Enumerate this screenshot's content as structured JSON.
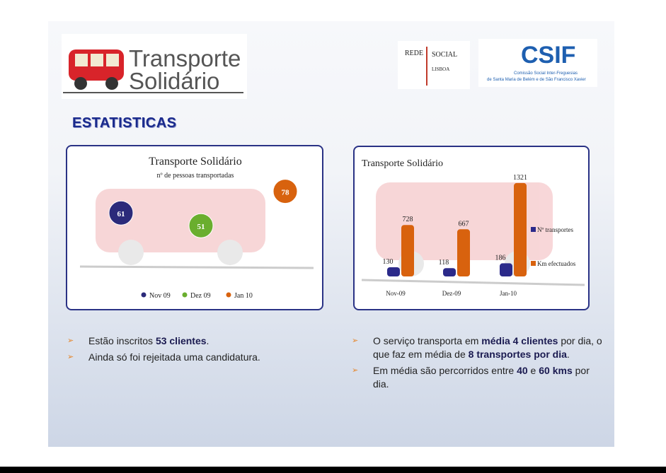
{
  "header": {
    "logo_line1": "Transporte",
    "logo_line2": "Solidário",
    "partner1_line1": "REDE",
    "partner1_line2": "SOCIAL",
    "partner1_line3": "LISBOA",
    "partner2_name": "CSIF",
    "partner2_line1": "Comissão Social Inter-Freguesias",
    "partner2_line2": "de Santa Maria de Belém e de São Francisco Xavier"
  },
  "section_title": "ESTATISTICAS",
  "chart_data": [
    {
      "type": "bubble",
      "title": "Transporte Solidário",
      "subtitle": "nº de pessoas transportadas",
      "series": [
        {
          "name": "Nov 09",
          "color": "#2b2a7a",
          "values": [
            61
          ]
        },
        {
          "name": "Dez 09",
          "color": "#6aae2e",
          "values": [
            51
          ]
        },
        {
          "name": "Jan 10",
          "color": "#d8620e",
          "values": [
            78
          ]
        }
      ]
    },
    {
      "type": "bar",
      "title": "Transporte Solidário",
      "categories": [
        "Nov-09",
        "Dez-09",
        "Jan-10"
      ],
      "series": [
        {
          "name": "Nº transportes",
          "color": "#2b2a8a",
          "values": [
            130,
            118,
            186
          ]
        },
        {
          "name": "Km efectuados",
          "color": "#d8620e",
          "values": [
            728,
            667,
            1321
          ]
        }
      ]
    }
  ],
  "bullets_left": [
    [
      {
        "text": "Estão inscritos ",
        "bold": false
      },
      {
        "text": "53 clientes",
        "bold": true
      },
      {
        "text": ".",
        "bold": false
      }
    ],
    [
      {
        "text": " Ainda só foi rejeitada uma candidatura.",
        "bold": false
      }
    ]
  ],
  "bullets_right": [
    [
      {
        "text": " O serviço transporta em ",
        "bold": false
      },
      {
        "text": "média 4 clientes",
        "bold": true
      },
      {
        "text": " por dia, o que faz em média de ",
        "bold": false
      },
      {
        "text": "8 transportes por dia",
        "bold": true
      },
      {
        "text": ".",
        "bold": false
      }
    ],
    [
      {
        "text": "Em média são percorridos entre ",
        "bold": false
      },
      {
        "text": "40",
        "bold": true
      },
      {
        "text": " e ",
        "bold": false
      },
      {
        "text": "60 kms",
        "bold": true
      },
      {
        "text": " por dia.",
        "bold": false
      }
    ]
  ]
}
